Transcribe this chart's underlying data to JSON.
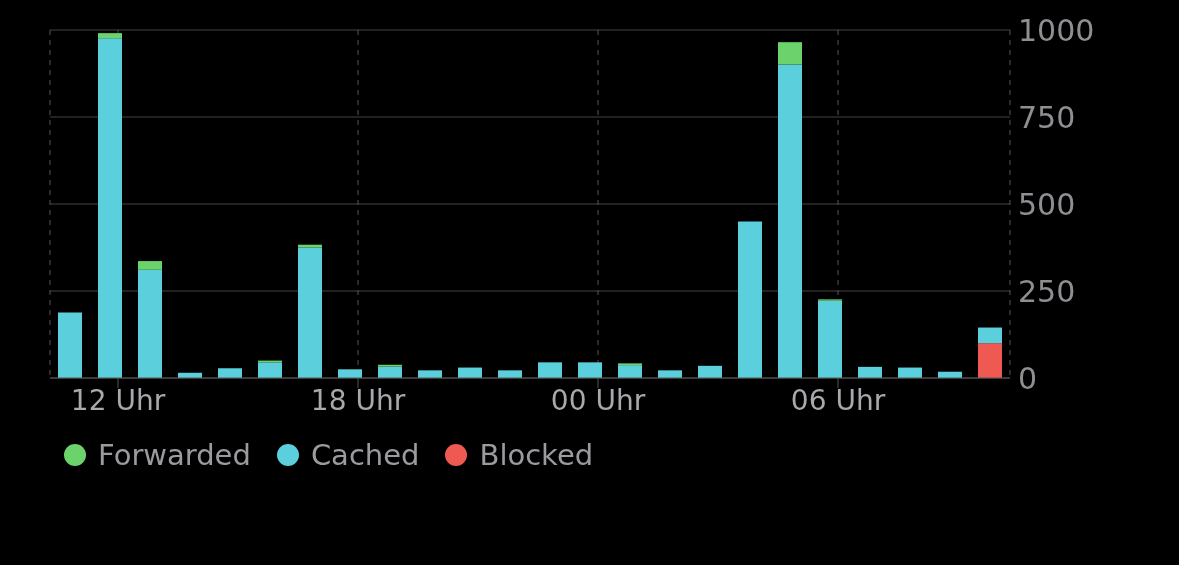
{
  "chart_data": {
    "type": "bar",
    "stacked": true,
    "x": [
      "--01-01T10:48",
      "--01-01T11:48",
      "--01-01T12:48",
      "--01-01T13:48",
      "--01-01T14:48",
      "--01-01T15:48",
      "--01-01T16:48",
      "--01-01T17:48",
      "--01-01T18:48",
      "--01-01T19:48",
      "--01-01T20:48",
      "--01-01T21:48",
      "--01-01T22:48",
      "--01-01T23:48",
      "--01-02T00:48",
      "--01-02T01:48",
      "--01-02T02:48",
      "--01-02T03:48",
      "--01-02T04:48",
      "--01-02T05:48",
      "--01-02T06:48",
      "--01-02T07:48",
      "--01-02T08:48",
      "--01-02T09:48"
    ],
    "series": [
      {
        "name": "Blocked",
        "color": "#ee5a52",
        "values": [
          0,
          0,
          0,
          0,
          0,
          0,
          0,
          0,
          0,
          0,
          0,
          0,
          0,
          0,
          0,
          0,
          0,
          0,
          0,
          0,
          0,
          0,
          0,
          100
        ]
      },
      {
        "name": "Cached",
        "color": "#5ccfdd",
        "values": [
          188,
          976,
          311,
          15,
          28,
          45,
          375,
          25,
          33,
          22,
          30,
          22,
          45,
          45,
          37,
          22,
          35,
          450,
          901,
          222,
          32,
          30,
          18,
          45
        ]
      },
      {
        "name": "Forwarded",
        "color": "#6cd36c",
        "values": [
          0,
          15,
          25,
          0,
          0,
          5,
          8,
          0,
          5,
          0,
          0,
          0,
          0,
          0,
          5,
          0,
          0,
          0,
          64,
          4,
          0,
          0,
          0,
          0
        ]
      }
    ],
    "xlim": [
      "--01-01T10:18",
      "--01-02T10:18"
    ],
    "xticks": [
      {
        "value": "--01-01T12:00",
        "label": "12 Uhr"
      },
      {
        "value": "--01-01T18:00",
        "label": "18 Uhr"
      },
      {
        "value": "--01-02T00:00",
        "label": "00 Uhr"
      },
      {
        "value": "--01-02T06:00",
        "label": "06 Uhr"
      }
    ],
    "ylim": [
      0,
      1000
    ],
    "yticks": [
      0,
      250,
      500,
      750,
      1000
    ],
    "grid": true,
    "legend": "bottom left"
  }
}
